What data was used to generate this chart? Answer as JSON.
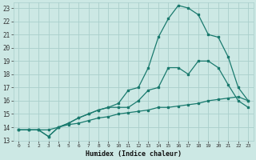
{
  "xlabel": "Humidex (Indice chaleur)",
  "background_color": "#cce8e4",
  "grid_color": "#aacfcc",
  "line_color": "#1a7a6e",
  "xlim": [
    -0.5,
    23.5
  ],
  "ylim": [
    13,
    23.4
  ],
  "xticks": [
    0,
    1,
    2,
    3,
    4,
    5,
    6,
    7,
    8,
    9,
    10,
    11,
    12,
    13,
    14,
    15,
    16,
    17,
    18,
    19,
    20,
    21,
    22,
    23
  ],
  "yticks": [
    13,
    14,
    15,
    16,
    17,
    18,
    19,
    20,
    21,
    22,
    23
  ],
  "line1_x": [
    0,
    1,
    2,
    3,
    4,
    5,
    6,
    7,
    8,
    9,
    10,
    11,
    12,
    13,
    14,
    15,
    16,
    17,
    18,
    19,
    20,
    21,
    22,
    23
  ],
  "line1_y": [
    13.8,
    13.8,
    13.8,
    13.8,
    14.0,
    14.2,
    14.3,
    14.5,
    14.7,
    14.8,
    15.0,
    15.1,
    15.2,
    15.3,
    15.5,
    15.5,
    15.6,
    15.7,
    15.8,
    16.0,
    16.1,
    16.2,
    16.3,
    16.0
  ],
  "line2_x": [
    0,
    1,
    2,
    3,
    4,
    5,
    6,
    7,
    8,
    9,
    10,
    11,
    12,
    13,
    14,
    15,
    16,
    17,
    18,
    19,
    20,
    21,
    22,
    23
  ],
  "line2_y": [
    13.8,
    13.8,
    13.8,
    13.3,
    14.0,
    14.3,
    14.7,
    15.0,
    15.3,
    15.5,
    15.5,
    15.5,
    16.0,
    16.8,
    17.0,
    18.5,
    18.5,
    18.0,
    19.0,
    19.0,
    18.5,
    17.2,
    16.0,
    15.5
  ],
  "line3_x": [
    0,
    1,
    2,
    3,
    4,
    5,
    6,
    7,
    8,
    9,
    10,
    11,
    12,
    13,
    14,
    15,
    16,
    17,
    18,
    19,
    20,
    21,
    22,
    23
  ],
  "line3_y": [
    13.8,
    13.8,
    13.8,
    13.3,
    14.0,
    14.3,
    14.7,
    15.0,
    15.3,
    15.5,
    15.8,
    16.8,
    17.0,
    18.5,
    20.8,
    22.2,
    23.2,
    23.0,
    22.5,
    21.0,
    20.8,
    19.3,
    17.0,
    16.0
  ]
}
